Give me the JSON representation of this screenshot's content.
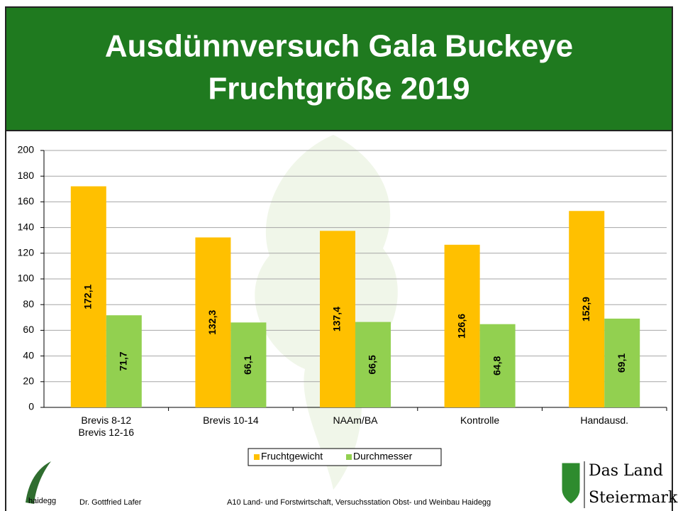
{
  "chart_data": {
    "type": "bar",
    "title": "Ausdünnversuch Gala Buckeye",
    "subtitle": "Fruchtgröße 2019",
    "categories": [
      "Brevis 8-12\nBrevis 12-16",
      "Brevis 10-14",
      "NAAm/BA",
      "Kontrolle",
      "Handausd."
    ],
    "series": [
      {
        "name": "Fruchtgewicht",
        "color": "#ffc000",
        "values": [
          172.1,
          132.3,
          137.4,
          126.6,
          152.9
        ],
        "value_labels": [
          "172,1",
          "132,3",
          "137,4",
          "126,6",
          "152,9"
        ]
      },
      {
        "name": "Durchmesser",
        "color": "#92d050",
        "values": [
          71.7,
          66.1,
          66.5,
          64.8,
          69.1
        ],
        "value_labels": [
          "71,7",
          "66,1",
          "66,5",
          "64,8",
          "69,1"
        ]
      }
    ],
    "ylim": [
      0,
      200
    ],
    "yticks": [
      0,
      20,
      40,
      60,
      80,
      100,
      120,
      140,
      160,
      180,
      200
    ],
    "grid": true,
    "legend": "bottom"
  },
  "footer": {
    "logo_text": "haidegg",
    "author": "Dr. Gottfried Lafer",
    "institution": "A10 Land- und Forstwirtschaft, Versuchsstation Obst- und Weinbau Haidegg",
    "brand_line1": "Das Land",
    "brand_line2": "Steiermark"
  }
}
